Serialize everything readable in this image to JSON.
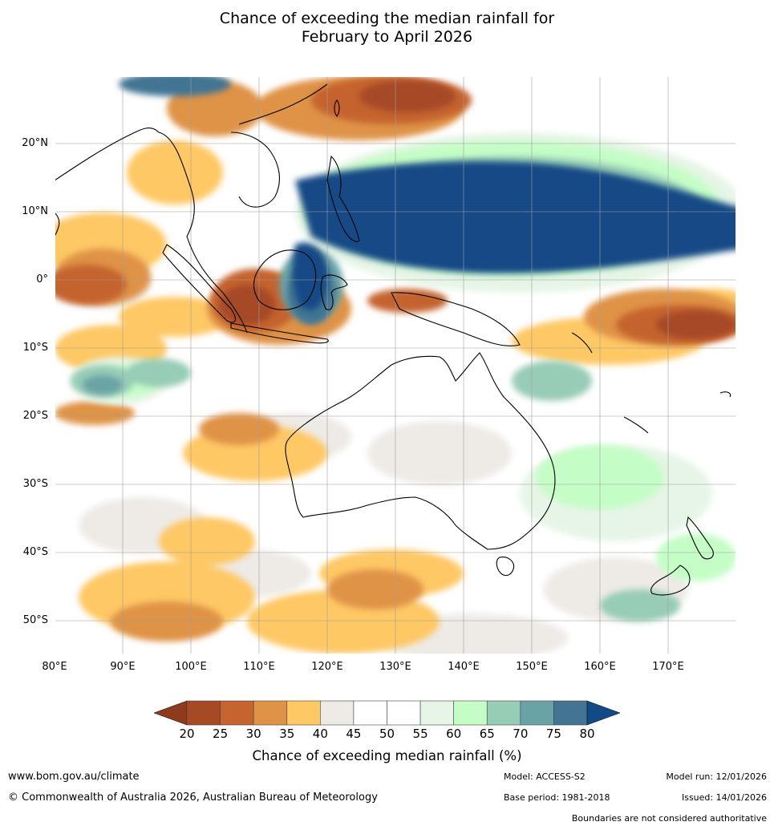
{
  "title": {
    "line1": "Chance of exceeding the median rainfall for",
    "line2": "February to April 2026"
  },
  "map": {
    "region": "Maritime Continent, Australia and south-west Pacific",
    "lat_range": [
      -55,
      30
    ],
    "lon_range": [
      80,
      180
    ],
    "lat_labels": [
      {
        "value": 20,
        "text": "20°N"
      },
      {
        "value": 10,
        "text": "10°N"
      },
      {
        "value": 0,
        "text": "0°"
      },
      {
        "value": -10,
        "text": "10°S"
      },
      {
        "value": -20,
        "text": "20°S"
      },
      {
        "value": -30,
        "text": "30°S"
      },
      {
        "value": -40,
        "text": "40°S"
      },
      {
        "value": -50,
        "text": "50°S"
      }
    ],
    "lon_labels": [
      {
        "value": 80,
        "text": "80°E"
      },
      {
        "value": 90,
        "text": "90°E"
      },
      {
        "value": 100,
        "text": "100°E"
      },
      {
        "value": 110,
        "text": "110°E"
      },
      {
        "value": 120,
        "text": "120°E"
      },
      {
        "value": 130,
        "text": "130°E"
      },
      {
        "value": 140,
        "text": "140°E"
      },
      {
        "value": 150,
        "text": "150°E"
      },
      {
        "value": 160,
        "text": "160°E"
      },
      {
        "value": 170,
        "text": "170°E"
      }
    ]
  },
  "colorbar": {
    "ticks": [
      "20",
      "25",
      "30",
      "35",
      "40",
      "45",
      "50",
      "55",
      "60",
      "65",
      "70",
      "75",
      "80"
    ],
    "low_arrow_color": "#8e3a1c",
    "high_arrow_color": "#124a86",
    "bins": [
      {
        "range": "20-25",
        "color": "#a64a26"
      },
      {
        "range": "25-30",
        "color": "#c5642f"
      },
      {
        "range": "30-35",
        "color": "#df9346"
      },
      {
        "range": "35-40",
        "color": "#fec865"
      },
      {
        "range": "40-45",
        "color": "#eeeae6"
      },
      {
        "range": "45-50",
        "color": "#ffffff"
      },
      {
        "range": "50-55",
        "color": "#ffffff"
      },
      {
        "range": "55-60",
        "color": "#e6f5e6"
      },
      {
        "range": "60-65",
        "color": "#c5fdc6"
      },
      {
        "range": "65-70",
        "color": "#97ccb6"
      },
      {
        "range": "70-75",
        "color": "#6aa3a6"
      },
      {
        "range": "75-80",
        "color": "#437593"
      }
    ],
    "label": "Chance of exceeding median rainfall (%)"
  },
  "footer": {
    "website": "www.bom.gov.au/climate",
    "copyright": "© Commonwealth of Australia 2026, Australian Bureau of Meteorology",
    "model": "Model: ACCESS-S2",
    "base_period": "Base period: 1981-2018",
    "model_run": "Model run: 12/01/2026",
    "issued": "Issued: 14/01/2026",
    "disclaimer": "Boundaries are not considered authoritative"
  }
}
